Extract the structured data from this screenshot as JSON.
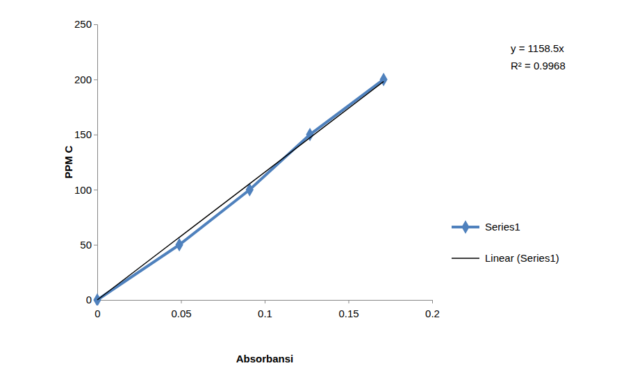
{
  "chart_data": {
    "type": "line",
    "x_label": "Absorbansi",
    "y_label": "PPM C",
    "annotations": [
      "y = 1158.5x",
      "R² = 0.9968"
    ],
    "x": [
      0,
      0.049,
      0.091,
      0.127,
      0.171
    ],
    "series": [
      {
        "name": "Series1",
        "color": "#4f81bd",
        "marker": "diamond",
        "line_style": "solid",
        "values": [
          0,
          50,
          100,
          150,
          200
        ]
      },
      {
        "name": "Linear (Series1)",
        "color": "#000000",
        "marker": "none",
        "line_style": "solid",
        "values": [
          0,
          56.8,
          105.4,
          147.1,
          198.1
        ]
      }
    ],
    "xlim": [
      0,
      0.2
    ],
    "xticks": [
      0,
      0.05,
      0.1,
      0.15,
      0.2
    ],
    "ylim": [
      0,
      250
    ],
    "yticks": [
      0,
      50,
      100,
      150,
      200,
      250
    ],
    "grid": false,
    "legend": "right"
  }
}
